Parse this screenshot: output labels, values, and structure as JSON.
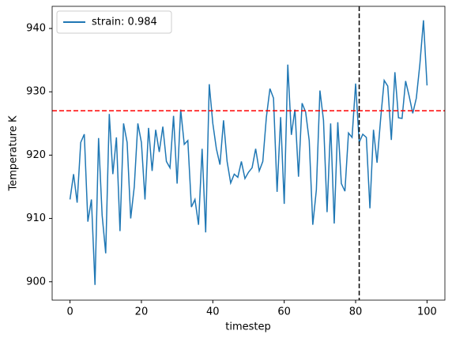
{
  "chart_data": {
    "type": "line",
    "xlabel": "timestep",
    "ylabel": "Temperature K",
    "x": [
      0,
      1,
      2,
      3,
      4,
      5,
      6,
      7,
      8,
      9,
      10,
      11,
      12,
      13,
      14,
      15,
      16,
      17,
      18,
      19,
      20,
      21,
      22,
      23,
      24,
      25,
      26,
      27,
      28,
      29,
      30,
      31,
      32,
      33,
      34,
      35,
      36,
      37,
      38,
      39,
      40,
      41,
      42,
      43,
      44,
      45,
      46,
      47,
      48,
      49,
      50,
      51,
      52,
      53,
      54,
      55,
      56,
      57,
      58,
      59,
      60,
      61,
      62,
      63,
      64,
      65,
      66,
      67,
      68,
      69,
      70,
      71,
      72,
      73,
      74,
      75,
      76,
      77,
      78,
      79,
      80,
      81,
      82,
      83,
      84,
      85,
      86,
      87,
      88,
      89,
      90,
      91,
      92,
      93,
      94,
      95,
      96,
      97,
      98,
      99,
      100
    ],
    "series": [
      {
        "name": "strain: 0.984",
        "color": "#1f77b4",
        "values": [
          913,
          917,
          912.5,
          922,
          923.3,
          909.5,
          913,
          899.5,
          922.7,
          910.5,
          904.5,
          926.5,
          917,
          922.8,
          908,
          925,
          922,
          910,
          915,
          925,
          922,
          913,
          924.3,
          917.5,
          924,
          920.5,
          924.5,
          919,
          918,
          926.2,
          915.5,
          927.2,
          921.7,
          922.3,
          911.8,
          913,
          909,
          921,
          907.8,
          931.2,
          925,
          921,
          918.5,
          925.5,
          919,
          915.6,
          917,
          916.5,
          919,
          916.3,
          917.3,
          918,
          921,
          917.5,
          919,
          926,
          930.5,
          929,
          914.2,
          926,
          912.3,
          934.3,
          923.2,
          927.2,
          916.6,
          928.2,
          926.8,
          922.3,
          909,
          914.5,
          930.2,
          925.5,
          911,
          925,
          909.2,
          925.2,
          915.5,
          914.3,
          923.5,
          922.8,
          931.3,
          922,
          923.3,
          922.8,
          911.6,
          924,
          918.8,
          925.7,
          931.8,
          930.9,
          922.4,
          933.1,
          925.9,
          925.8,
          931.7,
          929.3,
          926.6,
          929,
          934.4,
          941.3,
          931
        ]
      }
    ],
    "hline": {
      "value": 927,
      "color": "#ff0000"
    },
    "vline": {
      "value": 81,
      "color": "#000000"
    },
    "xlim": [
      -5,
      105
    ],
    "ylim": [
      897.1,
      943.5
    ],
    "xticks": [
      0,
      20,
      40,
      60,
      80,
      100
    ],
    "yticks": [
      900,
      910,
      920,
      930,
      940
    ],
    "legend": "upper left"
  }
}
